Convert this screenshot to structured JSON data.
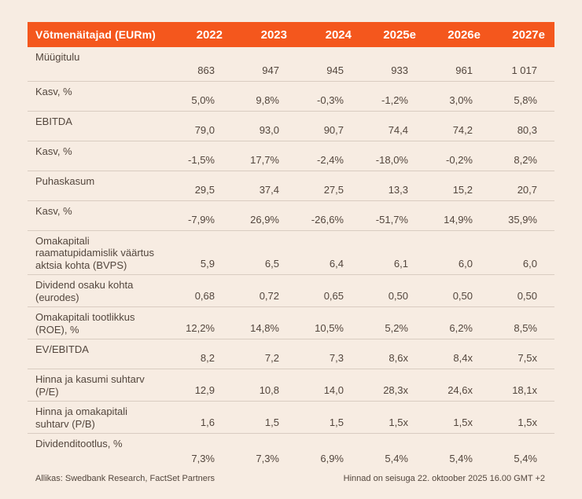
{
  "table": {
    "header": {
      "label": "Võtmenäitajad (EURm)",
      "years": [
        "2022",
        "2023",
        "2024",
        "2025e",
        "2026e",
        "2027e"
      ]
    },
    "rows": [
      {
        "label": "Müügitulu",
        "values": [
          "863",
          "947",
          "945",
          "933",
          "961",
          "1 017"
        ]
      },
      {
        "label": "Kasv, %",
        "values": [
          "5,0%",
          "9,8%",
          "-0,3%",
          "-1,2%",
          "3,0%",
          "5,8%"
        ]
      },
      {
        "label": "EBITDA",
        "values": [
          "79,0",
          "93,0",
          "90,7",
          "74,4",
          "74,2",
          "80,3"
        ]
      },
      {
        "label": "Kasv, %",
        "values": [
          "-1,5%",
          "17,7%",
          "-2,4%",
          "-18,0%",
          "-0,2%",
          "8,2%"
        ]
      },
      {
        "label": "Puhaskasum",
        "values": [
          "29,5",
          "37,4",
          "27,5",
          "13,3",
          "15,2",
          "20,7"
        ]
      },
      {
        "label": "Kasv, %",
        "values": [
          "-7,9%",
          "26,9%",
          "-26,6%",
          "-51,7%",
          "14,9%",
          "35,9%"
        ]
      },
      {
        "label": "Omakapitali\nraamatupidamislik väärtus\naktsia kohta (BVPS)",
        "values": [
          "5,9",
          "6,5",
          "6,4",
          "6,1",
          "6,0",
          "6,0"
        ]
      },
      {
        "label": "Dividend osaku kohta\n(eurodes)",
        "values": [
          "0,68",
          "0,72",
          "0,65",
          "0,50",
          "0,50",
          "0,50"
        ]
      },
      {
        "label": "Omakapitali tootlikkus\n(ROE), %",
        "values": [
          "12,2%",
          "14,8%",
          "10,5%",
          "5,2%",
          "6,2%",
          "8,5%"
        ]
      },
      {
        "label": "EV/EBITDA",
        "values": [
          "8,2",
          "7,2",
          "7,3",
          "8,6x",
          "8,4x",
          "7,5x"
        ]
      },
      {
        "label": "Hinna ja kasumi suhtarv\n(P/E)",
        "values": [
          "12,9",
          "10,8",
          "14,0",
          "28,3x",
          "24,6x",
          "18,1x"
        ]
      },
      {
        "label": "Hinna ja omakapitali\nsuhtarv (P/B)",
        "values": [
          "1,6",
          "1,5",
          "1,5",
          "1,5x",
          "1,5x",
          "1,5x"
        ]
      },
      {
        "label": "Dividenditootlus, %",
        "values": [
          "7,3%",
          "7,3%",
          "6,9%",
          "5,4%",
          "5,4%",
          "5,4%"
        ]
      }
    ]
  },
  "footer": {
    "source": "Allikas: Swedbank Research, FactSet Partners",
    "note": "Hinnad on seisuga 22. oktoober 2025 16.00 GMT +2"
  },
  "colors": {
    "accent": "#f4571d",
    "background": "#f7ece2",
    "text": "#53463d",
    "divider": "#d9ccc1",
    "header_text": "#ffffff"
  }
}
